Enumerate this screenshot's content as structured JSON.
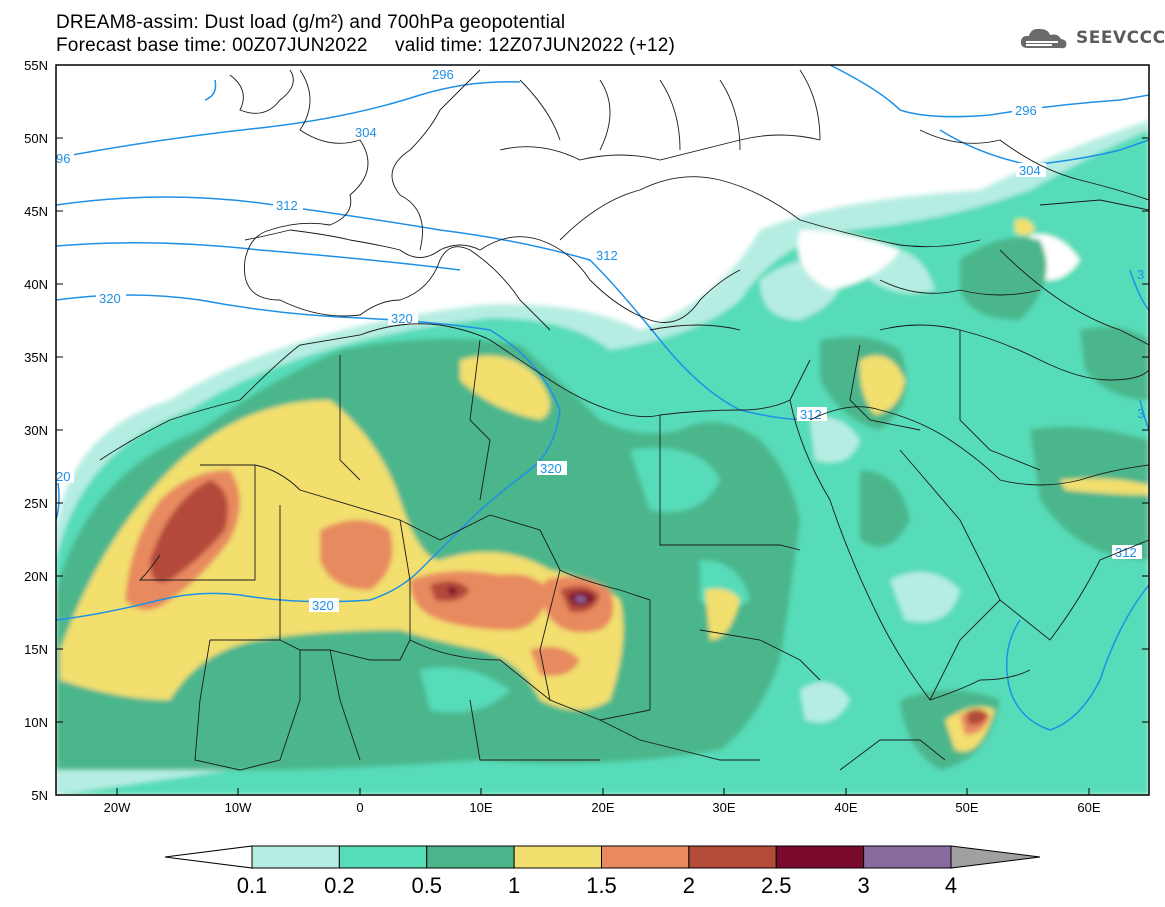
{
  "title": {
    "line1": "DREAM8-assim: Dust load (g/m²) and 700hPa geopotential",
    "line2": "Forecast base time: 00Z07JUN2022     valid time: 12Z07JUN2022 (+12)"
  },
  "logo": {
    "text": "SEEVCCC",
    "icon": "cloud-icon"
  },
  "map": {
    "lat_labels": [
      "55N",
      "50N",
      "45N",
      "40N",
      "35N",
      "30N",
      "25N",
      "20N",
      "15N",
      "10N",
      "5N"
    ],
    "lon_labels": [
      "20W",
      "10W",
      "0",
      "10E",
      "20E",
      "30E",
      "40E",
      "50E",
      "60E"
    ],
    "contour_labels": [
      "296",
      "296",
      "96",
      "304",
      "304",
      "312",
      "312",
      "312",
      "312",
      "320",
      "320",
      "320",
      "320",
      "20",
      "3",
      "3",
      "312"
    ]
  },
  "colorbar": {
    "labels": [
      "0.1",
      "0.2",
      "0.5",
      "1",
      "1.5",
      "2",
      "2.5",
      "3",
      "4"
    ],
    "colors": [
      "#b6ede2",
      "#57dcb8",
      "#4bb68c",
      "#f2df6e",
      "#e88a5e",
      "#b44a3a",
      "#7a0a2c",
      "#8a6a9e"
    ],
    "low_color": "#ffffff",
    "high_color": "#a0a0a0"
  },
  "styles": {
    "contour_color": "#1e90e6",
    "border_color": "#1a1a1a"
  }
}
